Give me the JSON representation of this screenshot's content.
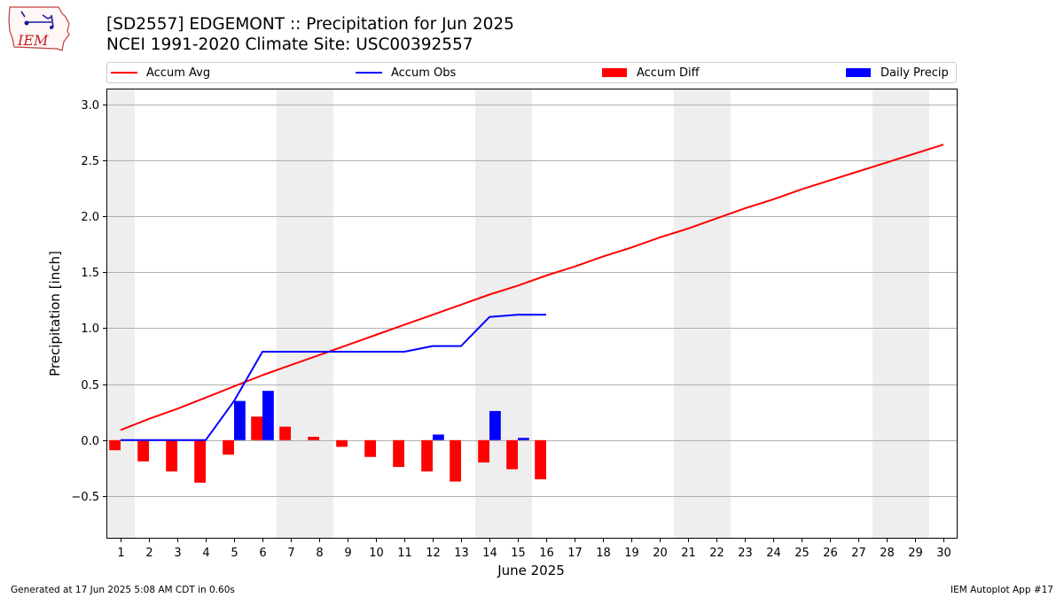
{
  "header": {
    "title_line1": "[SD2557] EDGEMONT :: Precipitation for Jun 2025",
    "title_line2": "NCEI 1991-2020 Climate Site: USC00392557",
    "logo_text": "IEM"
  },
  "legend": {
    "items": [
      {
        "label": "Accum Avg",
        "color": "#ff0000",
        "kind": "line"
      },
      {
        "label": "Accum Obs",
        "color": "#0000ff",
        "kind": "line"
      },
      {
        "label": "Accum Diff",
        "color": "#ff0000",
        "kind": "bar"
      },
      {
        "label": "Daily Precip",
        "color": "#0000ff",
        "kind": "bar"
      }
    ],
    "placement": "top"
  },
  "chart_data": {
    "type": "line",
    "xlabel": "June 2025",
    "ylabel": "Precipitation [inch]",
    "xlim": [
      0.5,
      30.5
    ],
    "ylim": [
      -0.88,
      3.14
    ],
    "x_ticks": [
      1,
      2,
      3,
      4,
      5,
      6,
      7,
      8,
      9,
      10,
      11,
      12,
      13,
      14,
      15,
      16,
      17,
      18,
      19,
      20,
      21,
      22,
      23,
      24,
      25,
      26,
      27,
      28,
      29,
      30
    ],
    "y_ticks": [
      -0.5,
      0.0,
      0.5,
      1.0,
      1.5,
      2.0,
      2.5,
      3.0
    ],
    "y_tick_labels": [
      "−0.5",
      "0.0",
      "0.5",
      "1.0",
      "1.5",
      "2.0",
      "2.5",
      "3.0"
    ],
    "grid": "horizontal",
    "weekend_shading": [
      [
        0.5,
        1.5
      ],
      [
        6.5,
        8.5
      ],
      [
        13.5,
        15.5
      ],
      [
        20.5,
        22.5
      ],
      [
        27.5,
        29.5
      ]
    ],
    "series": [
      {
        "name": "Accum Avg",
        "type": "line",
        "color": "#ff0000",
        "x": [
          1,
          2,
          3,
          4,
          5,
          6,
          7,
          8,
          9,
          10,
          11,
          12,
          13,
          14,
          15,
          16,
          17,
          18,
          19,
          20,
          21,
          22,
          23,
          24,
          25,
          26,
          27,
          28,
          29,
          30
        ],
        "values": [
          0.09,
          0.19,
          0.28,
          0.38,
          0.48,
          0.58,
          0.67,
          0.76,
          0.85,
          0.94,
          1.03,
          1.12,
          1.21,
          1.3,
          1.38,
          1.47,
          1.55,
          1.64,
          1.72,
          1.81,
          1.89,
          1.98,
          2.07,
          2.15,
          2.24,
          2.32,
          2.4,
          2.48,
          2.56,
          2.64
        ]
      },
      {
        "name": "Accum Obs",
        "type": "line",
        "color": "#0000ff",
        "x": [
          1,
          2,
          3,
          4,
          5,
          6,
          7,
          8,
          9,
          10,
          11,
          12,
          13,
          14,
          15,
          16
        ],
        "values": [
          0.0,
          0.0,
          0.0,
          0.0,
          0.35,
          0.79,
          0.79,
          0.79,
          0.79,
          0.79,
          0.79,
          0.84,
          0.84,
          1.1,
          1.12,
          1.12
        ]
      },
      {
        "name": "Accum Diff",
        "type": "bar",
        "color": "#ff0000",
        "x": [
          1,
          2,
          3,
          4,
          5,
          6,
          7,
          8,
          9,
          10,
          11,
          12,
          13,
          14,
          15,
          16
        ],
        "values": [
          -0.09,
          -0.19,
          -0.28,
          -0.38,
          -0.13,
          0.21,
          0.12,
          0.03,
          -0.06,
          -0.15,
          -0.24,
          -0.28,
          -0.37,
          -0.2,
          -0.26,
          -0.35
        ]
      },
      {
        "name": "Daily Precip",
        "type": "bar",
        "color": "#0000ff",
        "x": [
          1,
          2,
          3,
          4,
          5,
          6,
          7,
          8,
          9,
          10,
          11,
          12,
          13,
          14,
          15,
          16
        ],
        "values": [
          0,
          0,
          0,
          0,
          0.35,
          0.44,
          0,
          0,
          0,
          0,
          0,
          0.05,
          0,
          0.26,
          0.02,
          0
        ]
      }
    ]
  },
  "footer": {
    "generated": "Generated at 17 Jun 2025 5:08 AM CDT in 0.60s",
    "app": "IEM Autoplot App #17"
  }
}
